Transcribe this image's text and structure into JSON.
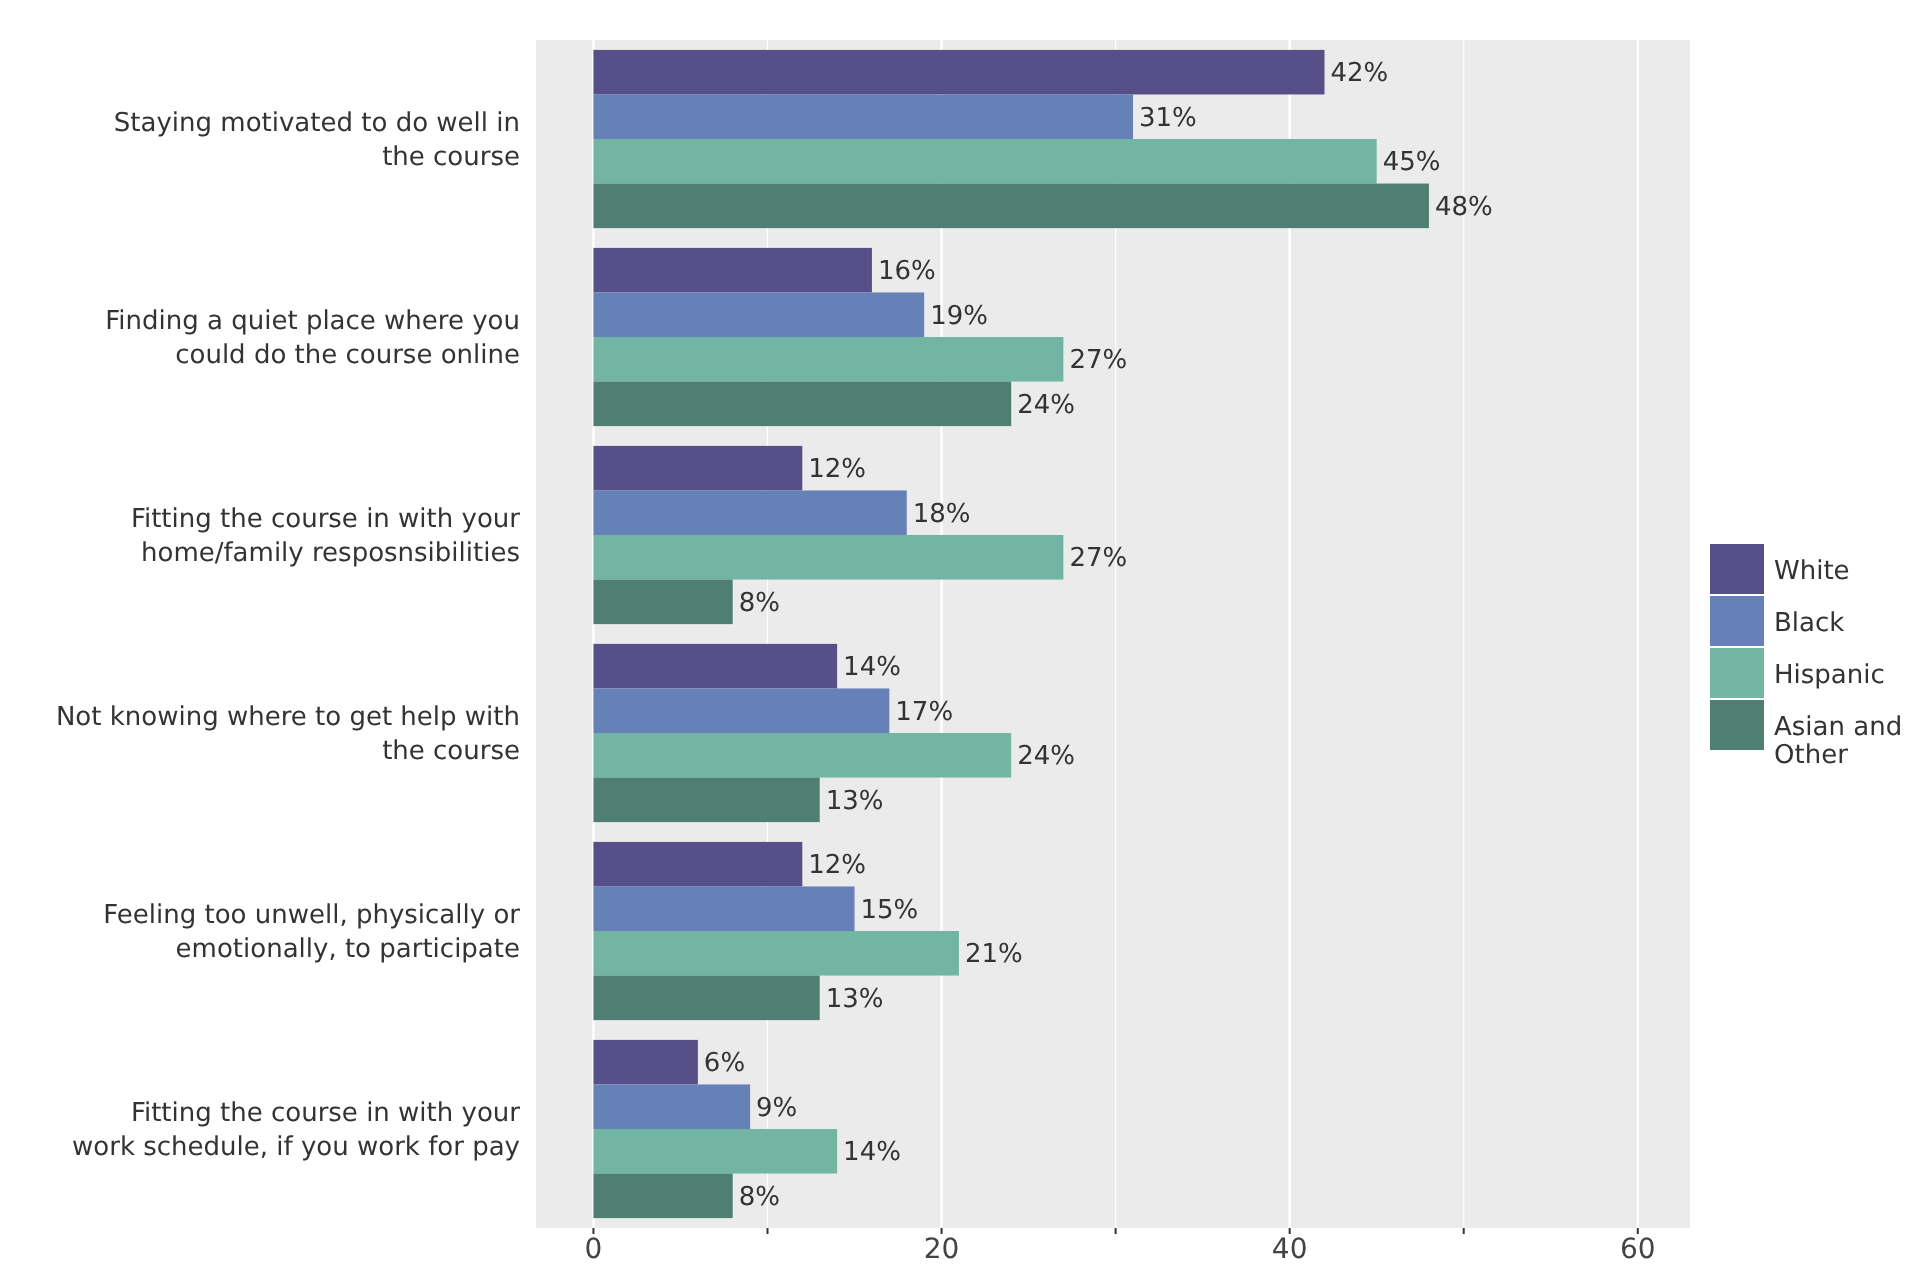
{
  "chart_data": {
    "type": "bar",
    "orientation": "horizontal",
    "categories": [
      "Staying motivated to do well in the course",
      "Finding a quiet place where you could do the course online",
      "Fitting the course in with your home/family resposnsibilities",
      "Not knowing where to get help with the course",
      "Feeling too unwell, physically or emotionally, to participate",
      "Fitting the course in with your work schedule, if you work for pay"
    ],
    "series": [
      {
        "name": "White",
        "color": "#574f87",
        "values": [
          42,
          16,
          12,
          14,
          12,
          6
        ],
        "value_labels": [
          "42%",
          "16%",
          "12%",
          "14%",
          "12%",
          "6%"
        ]
      },
      {
        "name": "Black",
        "color": "#6680b8",
        "values": [
          31,
          19,
          18,
          17,
          15,
          9
        ],
        "value_labels": [
          "31%",
          "19%",
          "18%",
          "17%",
          "15%",
          "9%"
        ]
      },
      {
        "name": "Hispanic",
        "color": "#73b5a3",
        "values": [
          45,
          27,
          27,
          24,
          21,
          14
        ],
        "value_labels": [
          "45%",
          "27%",
          "27%",
          "24%",
          "21%",
          "14%"
        ]
      },
      {
        "name": "Asian and Other",
        "color": "#4e7f72",
        "values": [
          48,
          24,
          8,
          13,
          13,
          8
        ],
        "value_labels": [
          "48%",
          "24%",
          "8%",
          "13%",
          "13%",
          "8%"
        ]
      }
    ],
    "xlim": [
      -3.3,
      63
    ],
    "xticks": [
      0,
      {
        "value": 10,
        "label": null
      },
      20,
      {
        "value": 30,
        "label": null
      },
      40,
      {
        "value": 50,
        "label": null
      },
      60
    ],
    "grid": "x",
    "legend": "right"
  }
}
